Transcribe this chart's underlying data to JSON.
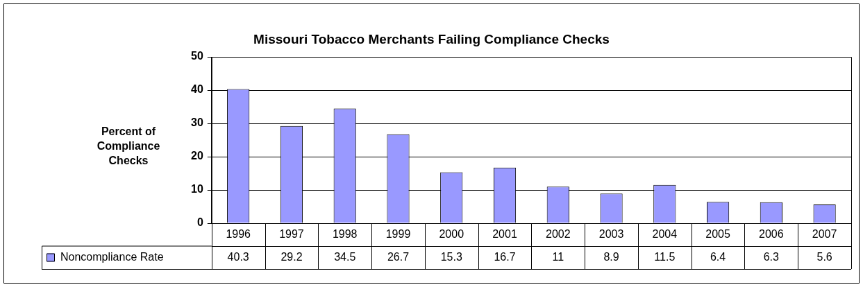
{
  "chart_data": {
    "type": "bar",
    "title": "Missouri Tobacco Merchants Failing Compliance Checks",
    "ylabel": "Percent of Compliance Checks",
    "categories": [
      "1996",
      "1997",
      "1998",
      "1999",
      "2000",
      "2001",
      "2002",
      "2003",
      "2004",
      "2005",
      "2006",
      "2007"
    ],
    "series": [
      {
        "name": "Noncompliance Rate",
        "color": "#9999ff",
        "values": [
          40.3,
          29.2,
          34.5,
          26.7,
          15.3,
          16.7,
          11,
          8.9,
          11.5,
          6.4,
          6.3,
          5.6
        ]
      }
    ],
    "ylim": [
      0,
      50
    ],
    "yticks": [
      0,
      10,
      20,
      30,
      40,
      50
    ],
    "grid": "y",
    "data_labels": true,
    "legend": "bottom left"
  }
}
